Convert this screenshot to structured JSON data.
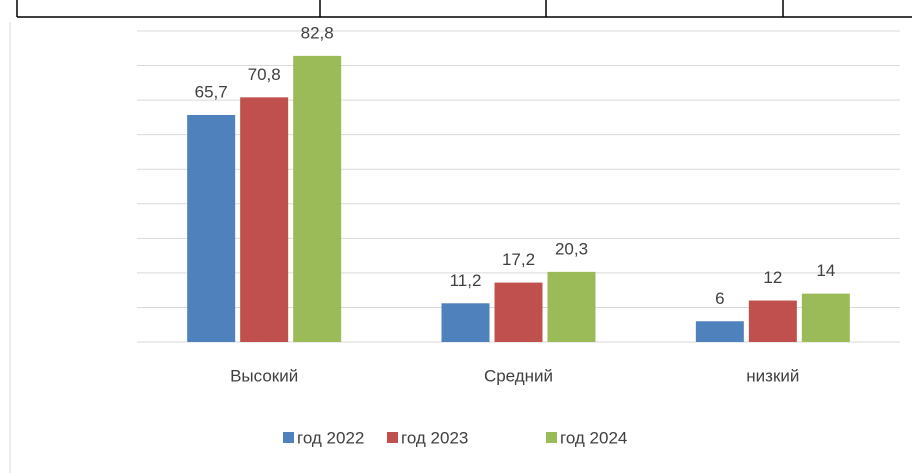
{
  "chart_data": {
    "type": "bar",
    "categories": [
      "Высокий",
      "Средний",
      "низкий"
    ],
    "series": [
      {
        "name": "год 2022",
        "color": "#4f81bd",
        "values": [
          65.7,
          11.2,
          6
        ],
        "value_labels": [
          "65,7",
          "11,2",
          "6"
        ]
      },
      {
        "name": "год 2023",
        "color": "#c0504d",
        "values": [
          70.8,
          17.2,
          12
        ],
        "value_labels": [
          "70,8",
          "17,2",
          "12"
        ]
      },
      {
        "name": "год 2024",
        "color": "#9bbb59",
        "values": [
          82.8,
          20.3,
          14
        ],
        "value_labels": [
          "82,8",
          "20,3",
          "14"
        ]
      }
    ],
    "ylim": [
      0,
      90
    ],
    "yticks": [
      0,
      10,
      20,
      30,
      40,
      50,
      60,
      70,
      80,
      90
    ],
    "grid": true,
    "legend": "bottom"
  }
}
